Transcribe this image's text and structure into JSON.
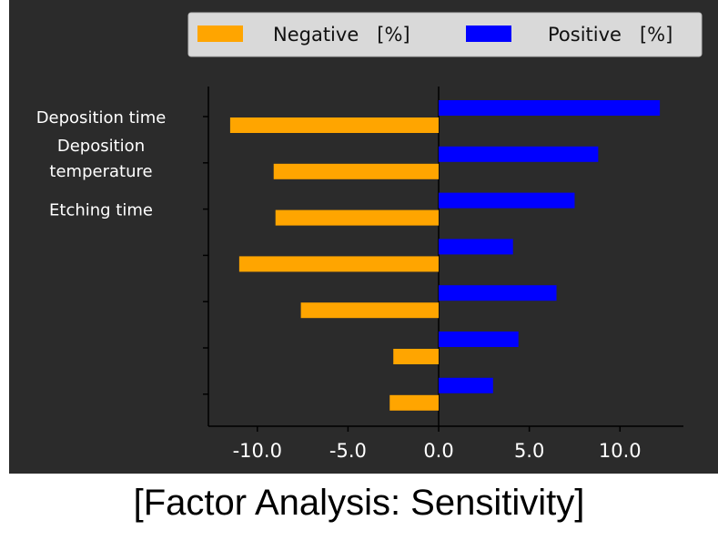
{
  "caption": "[Factor Analysis: Sensitivity]",
  "colors": {
    "background": "#2b2b2b",
    "negative": "#ffa500",
    "positive": "#0000ff",
    "text": "#ffffff",
    "legend_bg": "#d9d9d9"
  },
  "chart_data": {
    "type": "bar",
    "orientation": "horizontal",
    "categories": [
      "Deposition time",
      "Deposition temperature",
      "Etching time",
      "",
      "",
      "",
      ""
    ],
    "category_display": [
      [
        "Deposition time"
      ],
      [
        "Deposition",
        "temperature"
      ],
      [
        "Etching time"
      ],
      [],
      [],
      [],
      []
    ],
    "series": [
      {
        "name": "Negative   [%]",
        "color": "#ffa500",
        "values": [
          -11.5,
          -9.1,
          -9.0,
          -11.0,
          -7.6,
          -2.5,
          -2.7
        ]
      },
      {
        "name": "Positive   [%]",
        "color": "#0000ff",
        "values": [
          12.2,
          8.8,
          7.5,
          4.1,
          6.5,
          4.4,
          3.0
        ]
      }
    ],
    "xlim": [
      -12.7,
      13.5
    ],
    "xticks": [
      -10.0,
      -5.0,
      0.0,
      5.0,
      10.0
    ],
    "xtick_labels": [
      "-10.0",
      "-5.0",
      "0.0",
      "5.0",
      "10.0"
    ],
    "zero_line": true,
    "grid": false,
    "legend_position": "top-right"
  }
}
